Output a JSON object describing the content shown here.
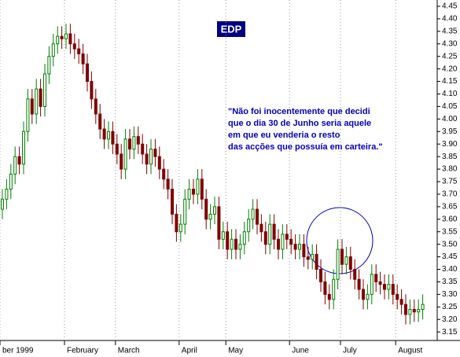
{
  "chart_data": {
    "type": "candlestick",
    "title": "EDP",
    "annotation": [
      "\"Não foi inocentemente que decidi",
      "que o dia 30 de Junho seria aquele",
      "em que eu venderia o resto",
      "das acções que possuía em carteira.\""
    ],
    "categories": [
      "ber 1999",
      null,
      null,
      null,
      null,
      null,
      null,
      null,
      null,
      null,
      null,
      null,
      null,
      null,
      null,
      "February",
      null,
      null,
      null,
      null,
      null,
      null,
      null,
      null,
      null,
      null,
      null,
      "March",
      null,
      null,
      null,
      null,
      null,
      null,
      null,
      null,
      null,
      null,
      null,
      null,
      null,
      null,
      "April",
      null,
      null,
      null,
      null,
      null,
      null,
      null,
      null,
      null,
      null,
      "May",
      null,
      null,
      null,
      null,
      null,
      null,
      null,
      null,
      null,
      null,
      null,
      null,
      null,
      null,
      "June",
      null,
      null,
      null,
      null,
      null,
      null,
      null,
      null,
      null,
      null,
      null,
      "July",
      null,
      null,
      null,
      null,
      null,
      null,
      null,
      null,
      null,
      null,
      null,
      null,
      "August",
      null,
      null,
      null,
      null,
      null,
      null
    ],
    "open": [
      3.64,
      3.68,
      3.72,
      3.78,
      3.85,
      3.82,
      3.95,
      4.08,
      4.02,
      4.12,
      4.05,
      4.18,
      4.25,
      4.3,
      4.33,
      4.32,
      4.34,
      4.3,
      4.28,
      4.26,
      4.22,
      4.15,
      4.08,
      4.02,
      3.96,
      3.92,
      3.95,
      3.9,
      3.86,
      3.8,
      3.92,
      3.88,
      3.93,
      3.9,
      3.86,
      3.82,
      3.88,
      3.85,
      3.8,
      3.76,
      3.72,
      3.62,
      3.55,
      3.58,
      3.68,
      3.72,
      3.7,
      3.76,
      3.68,
      3.6,
      3.62,
      3.65,
      3.52,
      3.55,
      3.48,
      3.52,
      3.48,
      3.5,
      3.55,
      3.6,
      3.64,
      3.58,
      3.55,
      3.5,
      3.58,
      3.52,
      3.48,
      3.54,
      3.52,
      3.5,
      3.48,
      3.5,
      3.45,
      3.44,
      3.46,
      3.4,
      3.35,
      3.3,
      3.28,
      3.36,
      3.48,
      3.42,
      3.45,
      3.4,
      3.36,
      3.32,
      3.28,
      3.3,
      3.38,
      3.35,
      3.34,
      3.32,
      3.34,
      3.3,
      3.28,
      3.26,
      3.22,
      3.24,
      3.23,
      3.24
    ],
    "high": [
      3.72,
      3.76,
      3.82,
      3.89,
      3.89,
      3.99,
      4.12,
      4.12,
      4.16,
      4.16,
      4.22,
      4.29,
      4.34,
      4.37,
      4.37,
      4.38,
      4.38,
      4.34,
      4.32,
      4.3,
      4.26,
      4.19,
      4.12,
      4.06,
      4.0,
      3.99,
      3.99,
      3.94,
      3.9,
      3.96,
      3.96,
      3.97,
      3.97,
      3.94,
      3.9,
      3.92,
      3.92,
      3.89,
      3.84,
      3.8,
      3.76,
      3.66,
      3.62,
      3.72,
      3.76,
      3.76,
      3.8,
      3.8,
      3.72,
      3.66,
      3.69,
      3.69,
      3.59,
      3.59,
      3.56,
      3.56,
      3.54,
      3.59,
      3.64,
      3.68,
      3.68,
      3.62,
      3.59,
      3.62,
      3.62,
      3.56,
      3.58,
      3.58,
      3.56,
      3.54,
      3.54,
      3.54,
      3.49,
      3.5,
      3.5,
      3.44,
      3.39,
      3.34,
      3.4,
      3.52,
      3.52,
      3.49,
      3.49,
      3.44,
      3.4,
      3.36,
      3.34,
      3.42,
      3.42,
      3.39,
      3.38,
      3.38,
      3.38,
      3.34,
      3.32,
      3.3,
      3.28,
      3.28,
      3.28,
      3.3
    ],
    "low": [
      3.6,
      3.64,
      3.68,
      3.74,
      3.78,
      3.78,
      3.91,
      3.98,
      3.98,
      4.01,
      4.01,
      4.14,
      4.21,
      4.26,
      4.28,
      4.28,
      4.26,
      4.24,
      4.22,
      4.18,
      4.11,
      4.04,
      3.98,
      3.92,
      3.88,
      3.88,
      3.86,
      3.82,
      3.76,
      3.76,
      3.84,
      3.84,
      3.86,
      3.82,
      3.78,
      3.78,
      3.81,
      3.76,
      3.72,
      3.68,
      3.58,
      3.51,
      3.51,
      3.54,
      3.64,
      3.66,
      3.66,
      3.64,
      3.56,
      3.56,
      3.58,
      3.48,
      3.48,
      3.44,
      3.44,
      3.44,
      3.44,
      3.46,
      3.51,
      3.56,
      3.54,
      3.51,
      3.46,
      3.46,
      3.48,
      3.44,
      3.44,
      3.48,
      3.46,
      3.44,
      3.44,
      3.41,
      3.4,
      3.4,
      3.36,
      3.31,
      3.26,
      3.24,
      3.24,
      3.32,
      3.38,
      3.38,
      3.36,
      3.32,
      3.28,
      3.24,
      3.24,
      3.26,
      3.31,
      3.3,
      3.28,
      3.28,
      3.26,
      3.24,
      3.22,
      3.18,
      3.18,
      3.19,
      3.19,
      3.2
    ],
    "close": [
      3.68,
      3.72,
      3.78,
      3.85,
      3.82,
      3.95,
      4.08,
      4.02,
      4.12,
      4.05,
      4.18,
      4.25,
      4.3,
      4.33,
      4.32,
      4.34,
      4.3,
      4.28,
      4.26,
      4.22,
      4.15,
      4.08,
      4.02,
      3.96,
      3.92,
      3.95,
      3.9,
      3.86,
      3.8,
      3.92,
      3.88,
      3.93,
      3.9,
      3.86,
      3.82,
      3.88,
      3.85,
      3.8,
      3.76,
      3.72,
      3.62,
      3.55,
      3.58,
      3.68,
      3.72,
      3.7,
      3.76,
      3.68,
      3.6,
      3.62,
      3.65,
      3.52,
      3.55,
      3.48,
      3.52,
      3.48,
      3.5,
      3.55,
      3.6,
      3.64,
      3.58,
      3.55,
      3.5,
      3.58,
      3.52,
      3.48,
      3.54,
      3.52,
      3.5,
      3.48,
      3.5,
      3.45,
      3.44,
      3.46,
      3.4,
      3.35,
      3.3,
      3.28,
      3.36,
      3.48,
      3.42,
      3.45,
      3.4,
      3.36,
      3.32,
      3.28,
      3.3,
      3.38,
      3.35,
      3.34,
      3.32,
      3.34,
      3.3,
      3.28,
      3.26,
      3.22,
      3.24,
      3.23,
      3.24,
      3.26
    ],
    "up_color": "#008000",
    "down_color": "#800000",
    "ylim": [
      3.116,
      4.475
    ],
    "yticks": [
      {
        "value": 3.15,
        "label": "3.15"
      },
      {
        "value": 3.2,
        "label": "3.20"
      },
      3.25,
      {
        "value": 3.3,
        "label": "3.30"
      },
      3.35,
      {
        "value": 3.4,
        "label": "3.40"
      },
      3.45,
      {
        "value": 3.5,
        "label": "3.50"
      },
      3.55,
      {
        "value": 3.6,
        "label": "3.60"
      },
      3.65,
      {
        "value": 3.7,
        "label": "3.70"
      },
      3.75,
      {
        "value": 3.8,
        "label": "3.80"
      },
      3.85,
      {
        "value": 3.9,
        "label": "3.90"
      },
      3.95,
      {
        "value": 4.0,
        "label": "4.00"
      },
      4.05,
      {
        "value": 4.1,
        "label": "4.10"
      },
      4.15,
      {
        "value": 4.2,
        "label": "4.20"
      },
      4.25,
      {
        "value": 4.3,
        "label": "4.30"
      },
      4.35,
      {
        "value": 4.4,
        "label": "4.40"
      },
      4.45
    ]
  }
}
